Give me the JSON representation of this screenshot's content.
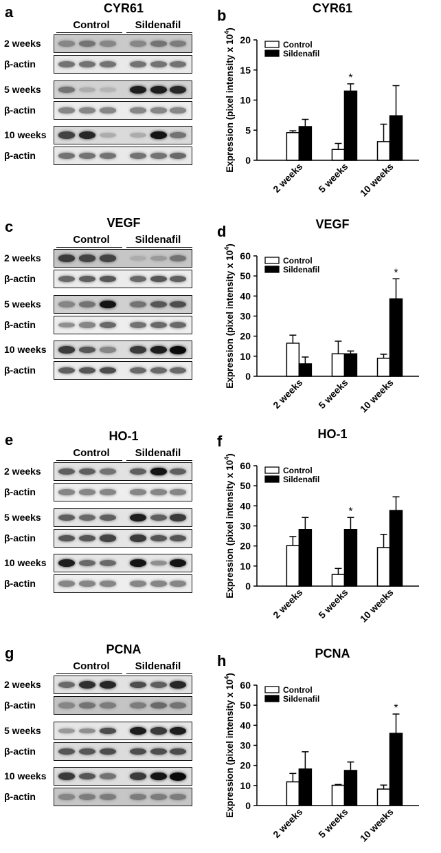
{
  "blot_panels": [
    {
      "letter": "a",
      "title": "CYR61",
      "control": "Control",
      "sildenafil": "Sildenafil",
      "rows": [
        {
          "label": "2 weeks",
          "intensity": [
            0.35,
            0.45,
            0.35,
            0.35,
            0.45,
            0.4
          ],
          "bg": "#c9c9c9"
        },
        {
          "label": "β-actin",
          "intensity": [
            0.45,
            0.45,
            0.45,
            0.45,
            0.45,
            0.45
          ],
          "bg": "#e9e9e9"
        },
        {
          "label": "5 weeks",
          "intensity": [
            0.45,
            0.15,
            0.1,
            0.9,
            0.9,
            0.85
          ],
          "bg": "#d2d2d2"
        },
        {
          "label": "β-actin",
          "intensity": [
            0.35,
            0.35,
            0.35,
            0.35,
            0.35,
            0.35
          ],
          "bg": "#ececec"
        },
        {
          "label": "10 weeks",
          "intensity": [
            0.7,
            0.85,
            0.15,
            0.15,
            0.95,
            0.45
          ],
          "bg": "#dadada"
        },
        {
          "label": "β-actin",
          "intensity": [
            0.45,
            0.45,
            0.45,
            0.45,
            0.45,
            0.5
          ],
          "bg": "#e9e9e9"
        }
      ]
    },
    {
      "letter": "c",
      "title": "VEGF",
      "control": "Control",
      "sildenafil": "Sildenafil",
      "rows": [
        {
          "label": "2 weeks",
          "intensity": [
            0.75,
            0.7,
            0.7,
            0.15,
            0.25,
            0.45
          ],
          "bg": "#c6c6c6"
        },
        {
          "label": "β-actin",
          "intensity": [
            0.5,
            0.55,
            0.6,
            0.5,
            0.6,
            0.55
          ],
          "bg": "#ececec"
        },
        {
          "label": "5 weeks",
          "intensity": [
            0.35,
            0.45,
            0.95,
            0.45,
            0.6,
            0.65
          ],
          "bg": "#d0d0d0"
        },
        {
          "label": "β-actin",
          "intensity": [
            0.3,
            0.35,
            0.5,
            0.45,
            0.5,
            0.5
          ],
          "bg": "#eeeeee"
        },
        {
          "label": "10 weeks",
          "intensity": [
            0.75,
            0.6,
            0.35,
            0.75,
            0.9,
            1.0
          ],
          "bg": "#dcdcdc"
        },
        {
          "label": "β-actin",
          "intensity": [
            0.55,
            0.6,
            0.65,
            0.5,
            0.5,
            0.5
          ],
          "bg": "#ececec"
        }
      ]
    },
    {
      "letter": "e",
      "title": "HO-1",
      "control": "Control",
      "sildenafil": "Sildenafil",
      "rows": [
        {
          "label": "2 weeks",
          "intensity": [
            0.55,
            0.55,
            0.45,
            0.55,
            0.95,
            0.55
          ],
          "bg": "#e2e2e2"
        },
        {
          "label": "β-actin",
          "intensity": [
            0.35,
            0.35,
            0.35,
            0.35,
            0.35,
            0.35
          ],
          "bg": "#eeeeee"
        },
        {
          "label": "5 weeks",
          "intensity": [
            0.55,
            0.5,
            0.55,
            0.9,
            0.55,
            0.75
          ],
          "bg": "#e4e4e4"
        },
        {
          "label": "β-actin",
          "intensity": [
            0.6,
            0.6,
            0.7,
            0.75,
            0.6,
            0.6
          ],
          "bg": "#e6e6e6"
        },
        {
          "label": "10 weeks",
          "intensity": [
            0.9,
            0.5,
            0.5,
            0.95,
            0.3,
            0.95
          ],
          "bg": "#e6e6e6"
        },
        {
          "label": "β-actin",
          "intensity": [
            0.35,
            0.35,
            0.35,
            0.35,
            0.35,
            0.35
          ],
          "bg": "#eeeeee"
        }
      ]
    },
    {
      "letter": "g",
      "title": "PCNA",
      "control": "Control",
      "sildenafil": "Sildenafil",
      "rows": [
        {
          "label": "2 weeks",
          "intensity": [
            0.5,
            0.8,
            0.85,
            0.65,
            0.55,
            0.85
          ],
          "bg": "#e2e2e2"
        },
        {
          "label": "β-actin",
          "intensity": [
            0.35,
            0.45,
            0.4,
            0.4,
            0.5,
            0.45
          ],
          "bg": "#c4c4c4"
        },
        {
          "label": "5 weeks",
          "intensity": [
            0.25,
            0.3,
            0.65,
            0.9,
            0.75,
            0.9
          ],
          "bg": "#e6e6e6"
        },
        {
          "label": "β-actin",
          "intensity": [
            0.6,
            0.6,
            0.65,
            0.65,
            0.65,
            0.65
          ],
          "bg": "#dcdcdc"
        },
        {
          "label": "10 weeks",
          "intensity": [
            0.75,
            0.6,
            0.45,
            0.75,
            0.95,
            1.0
          ],
          "bg": "#dedede"
        },
        {
          "label": "β-actin",
          "intensity": [
            0.35,
            0.4,
            0.4,
            0.4,
            0.4,
            0.4
          ],
          "bg": "#c6c6c6"
        }
      ]
    }
  ],
  "chart_data": [
    {
      "letter": "b",
      "title": "CYR61",
      "type": "bar",
      "categories": [
        "2 weeks",
        "5 weeks",
        "10 weeks"
      ],
      "series": [
        {
          "name": "Control",
          "values": [
            4.6,
            1.8,
            3.1
          ],
          "errors": [
            0.3,
            1.0,
            2.9
          ],
          "color": "#ffffff"
        },
        {
          "name": "Sildenafil",
          "values": [
            5.6,
            11.5,
            7.4
          ],
          "errors": [
            1.2,
            1.2,
            5.0
          ],
          "color": "#000000"
        }
      ],
      "significant": [
        {
          "category": 1,
          "series": 1,
          "mark": "*"
        }
      ],
      "ylabel": "Expression (pixel intensity x 10",
      "ylabel_sup": "4",
      "ylabel_close": ")",
      "ylim": [
        0,
        20
      ],
      "yticks": [
        "0",
        "5",
        "10",
        "15",
        "20"
      ],
      "legend": "top-left"
    },
    {
      "letter": "d",
      "title": "VEGF",
      "type": "bar",
      "categories": [
        "2 weeks",
        "5 weeks",
        "10 weeks"
      ],
      "series": [
        {
          "name": "Control",
          "values": [
            16.5,
            11.2,
            9.0
          ],
          "errors": [
            4.0,
            6.3,
            2.0
          ],
          "color": "#ffffff"
        },
        {
          "name": "Sildenafil",
          "values": [
            6.2,
            11.2,
            38.6
          ],
          "errors": [
            3.4,
            1.4,
            10.0
          ],
          "color": "#000000"
        }
      ],
      "significant": [
        {
          "category": 2,
          "series": 1,
          "mark": "*"
        }
      ],
      "ylabel": "Expression (pixel intensity x 10",
      "ylabel_sup": "4",
      "ylabel_close": ")",
      "ylim": [
        0,
        60
      ],
      "yticks": [
        "0",
        "10",
        "20",
        "30",
        "40",
        "50",
        "60"
      ],
      "legend": "top-left"
    },
    {
      "letter": "f",
      "title": "HO-1",
      "type": "bar",
      "categories": [
        "2 weeks",
        "5 weeks",
        "10 weeks"
      ],
      "series": [
        {
          "name": "Control",
          "values": [
            20.2,
            5.8,
            19.2
          ],
          "errors": [
            4.5,
            3.0,
            6.6
          ],
          "color": "#ffffff"
        },
        {
          "name": "Sildenafil",
          "values": [
            28.2,
            28.2,
            37.7
          ],
          "errors": [
            6.0,
            6.0,
            6.8
          ],
          "color": "#000000"
        }
      ],
      "significant": [
        {
          "category": 1,
          "series": 1,
          "mark": "*"
        }
      ],
      "ylabel": "Expression (pixel intensity x 10",
      "ylabel_sup": "4",
      "ylabel_close": ")",
      "ylim": [
        0,
        60
      ],
      "yticks": [
        "0",
        "10",
        "20",
        "30",
        "40",
        "50",
        "60"
      ],
      "legend": "top-left"
    },
    {
      "letter": "h",
      "title": "PCNA",
      "type": "bar",
      "categories": [
        "2 weeks",
        "5 weeks",
        "10 weeks"
      ],
      "series": [
        {
          "name": "Control",
          "values": [
            11.8,
            10.1,
            8.2
          ],
          "errors": [
            4.2,
            0.4,
            2.0
          ],
          "color": "#ffffff"
        },
        {
          "name": "Sildenafil",
          "values": [
            18.2,
            17.5,
            36.0
          ],
          "errors": [
            8.6,
            4.2,
            9.6
          ],
          "color": "#000000"
        }
      ],
      "significant": [
        {
          "category": 2,
          "series": 1,
          "mark": "*"
        }
      ],
      "ylabel": "Expression (pixel intensity x 10",
      "ylabel_sup": "4",
      "ylabel_close": ")",
      "ylim": [
        0,
        60
      ],
      "yticks": [
        "0",
        "10",
        "20",
        "30",
        "40",
        "50",
        "60"
      ],
      "legend": "top-left"
    }
  ]
}
